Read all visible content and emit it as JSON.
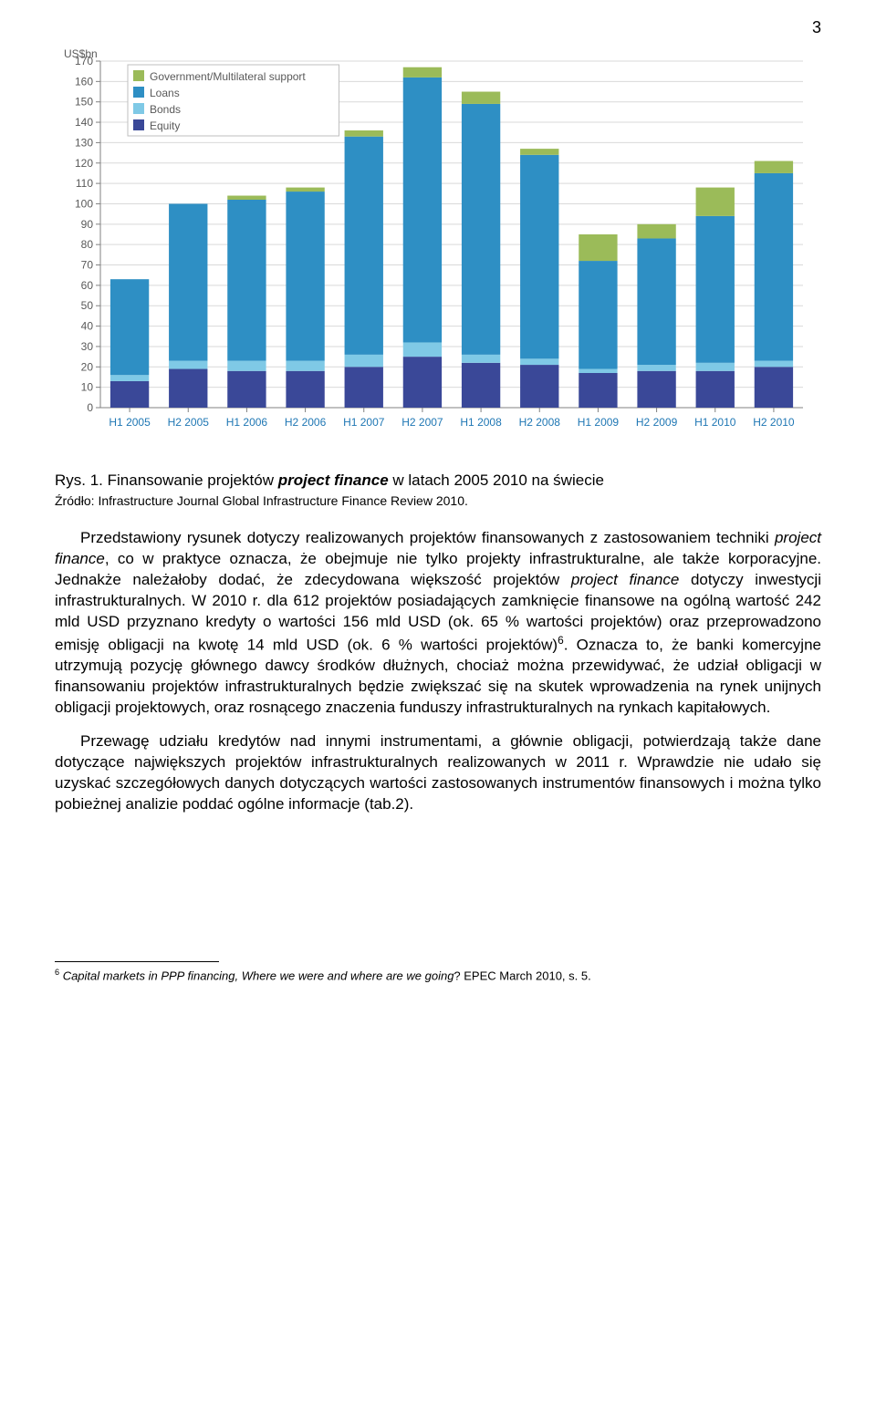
{
  "page_number": "3",
  "chart": {
    "type": "stacked-bar",
    "y_axis_label": "US$bn",
    "y_min": 0,
    "y_max": 170,
    "y_tick_step": 10,
    "categories": [
      "H1 2005",
      "H2 2005",
      "H1 2006",
      "H2 2006",
      "H1 2007",
      "H2 2007",
      "H1 2008",
      "H2 2008",
      "H1 2009",
      "H2 2009",
      "H1 2010",
      "H2 2010"
    ],
    "legend": [
      {
        "key": "gov",
        "label": "Government/Multilateral support",
        "color": "#9bbb59"
      },
      {
        "key": "loans",
        "label": "Loans",
        "color": "#2e8fc4"
      },
      {
        "key": "bonds",
        "label": "Bonds",
        "color": "#7fc9e6"
      },
      {
        "key": "equity",
        "label": "Equity",
        "color": "#3a4898"
      }
    ],
    "series": {
      "equity": [
        13,
        19,
        18,
        18,
        20,
        25,
        22,
        21,
        17,
        18,
        18,
        20
      ],
      "bonds": [
        3,
        4,
        5,
        5,
        6,
        7,
        4,
        3,
        2,
        3,
        4,
        3
      ],
      "loans": [
        47,
        77,
        79,
        83,
        107,
        130,
        123,
        100,
        53,
        62,
        72,
        92
      ],
      "gov": [
        0,
        0,
        2,
        2,
        3,
        5,
        6,
        3,
        13,
        7,
        14,
        6
      ]
    },
    "bar_width": 0.66,
    "background_color": "#ffffff",
    "gridline_color": "#d9d9d9",
    "axis_color": "#808080",
    "tick_font_size": 12,
    "tick_color": "#595959",
    "cat_color": "#1f77b4",
    "legend_font_size": 12,
    "legend_bg": "#ffffff",
    "legend_border": "#bfbfbf"
  },
  "caption_prefix": "Rys. 1. Finansowanie projektów ",
  "caption_italic": "project finance",
  "caption_suffix": " w latach 2005 2010 na świecie",
  "source_line": "Źródło: Infrastructure Journal Global Infrastructure Finance Review 2010.",
  "para1_a": "Przedstawiony rysunek dotyczy realizowanych projektów finansowanych z zastosowaniem techniki ",
  "para1_i1": "project finance",
  "para1_b": ", co w praktyce oznacza, że obejmuje nie tylko projekty infrastrukturalne, ale także korporacyjne. Jednakże należałoby dodać, że zdecydowana większość projektów ",
  "para1_i2": "project finance",
  "para1_c": " dotyczy inwestycji infrastrukturalnych. W 2010 r. dla 612 projektów posiadających zamknięcie finansowe na ogólną wartość 242 mld USD  przyznano kredyty o wartości 156 mld USD (ok. 65 % wartości projektów) oraz przeprowadzono emisję obligacji na kwotę 14 mld USD (ok. 6 % wartości projektów)",
  "para1_sup": "6",
  "para1_d": ". Oznacza to, że banki komercyjne utrzymują pozycję głównego dawcy środków dłużnych, chociaż można przewidywać, że udział obligacji w finansowaniu projektów infrastrukturalnych będzie zwiększać się na skutek wprowadzenia na rynek unijnych obligacji projektowych, oraz rosnącego znaczenia funduszy infrastrukturalnych na rynkach kapitałowych.",
  "para2": "Przewagę udziału kredytów nad innymi instrumentami, a głównie obligacji, potwierdzają także dane dotyczące największych projektów infrastrukturalnych realizowanych w 2011 r. Wprawdzie nie udało się uzyskać szczegółowych danych dotyczących wartości zastosowanych instrumentów finansowych i można tylko pobieżnej analizie poddać ogólne informacje (tab.2).",
  "footnote_num": "6",
  "footnote_italic": "Capital markets in PPP financing, Where we were and where are we going",
  "footnote_rest": "? EPEC March 2010, s. 5."
}
